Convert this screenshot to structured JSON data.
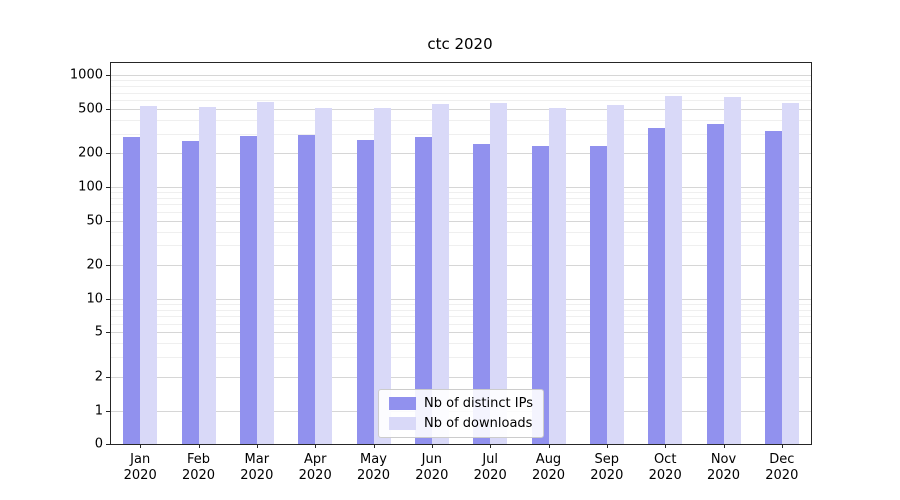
{
  "figure": {
    "title": "ctc 2020"
  },
  "chart_data": {
    "type": "bar",
    "title": "ctc 2020",
    "xlabel": "",
    "ylabel": "",
    "yscale": "symlog",
    "grid": true,
    "legend_position": "lower center",
    "ylim": [
      0,
      1300
    ],
    "yticks": [
      0,
      1,
      2,
      5,
      10,
      20,
      50,
      100,
      200,
      500,
      1000
    ],
    "categories": [
      "Jan 2020",
      "Feb 2020",
      "Mar 2020",
      "Apr 2020",
      "May 2020",
      "Jun 2020",
      "Jul 2020",
      "Aug 2020",
      "Sep 2020",
      "Oct 2020",
      "Nov 2020",
      "Dec 2020"
    ],
    "series": [
      {
        "name": "Nb of distinct IPs",
        "color": "#9191ee",
        "values": [
          280,
          260,
          285,
          295,
          265,
          280,
          245,
          235,
          235,
          340,
          365,
          320
        ]
      },
      {
        "name": "Nb of downloads",
        "color": "#d9d9f8",
        "values": [
          530,
          520,
          580,
          505,
          510,
          555,
          570,
          505,
          540,
          650,
          640,
          560
        ]
      }
    ]
  }
}
